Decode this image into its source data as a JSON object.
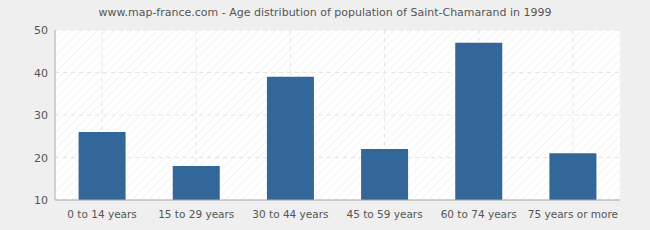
{
  "chart_data": {
    "type": "bar",
    "title": "www.map-france.com - Age distribution of population of Saint-Chamarand in 1999",
    "categories": [
      "0 to 14 years",
      "15 to 29 years",
      "30 to 44 years",
      "45 to 59 years",
      "60 to 74 years",
      "75 years or more"
    ],
    "values": [
      26,
      18,
      39,
      22,
      47,
      21
    ],
    "color": "#336699",
    "ylim": [
      10,
      50
    ],
    "yticks": [
      10,
      20,
      30,
      40,
      50
    ],
    "grid": true
  }
}
